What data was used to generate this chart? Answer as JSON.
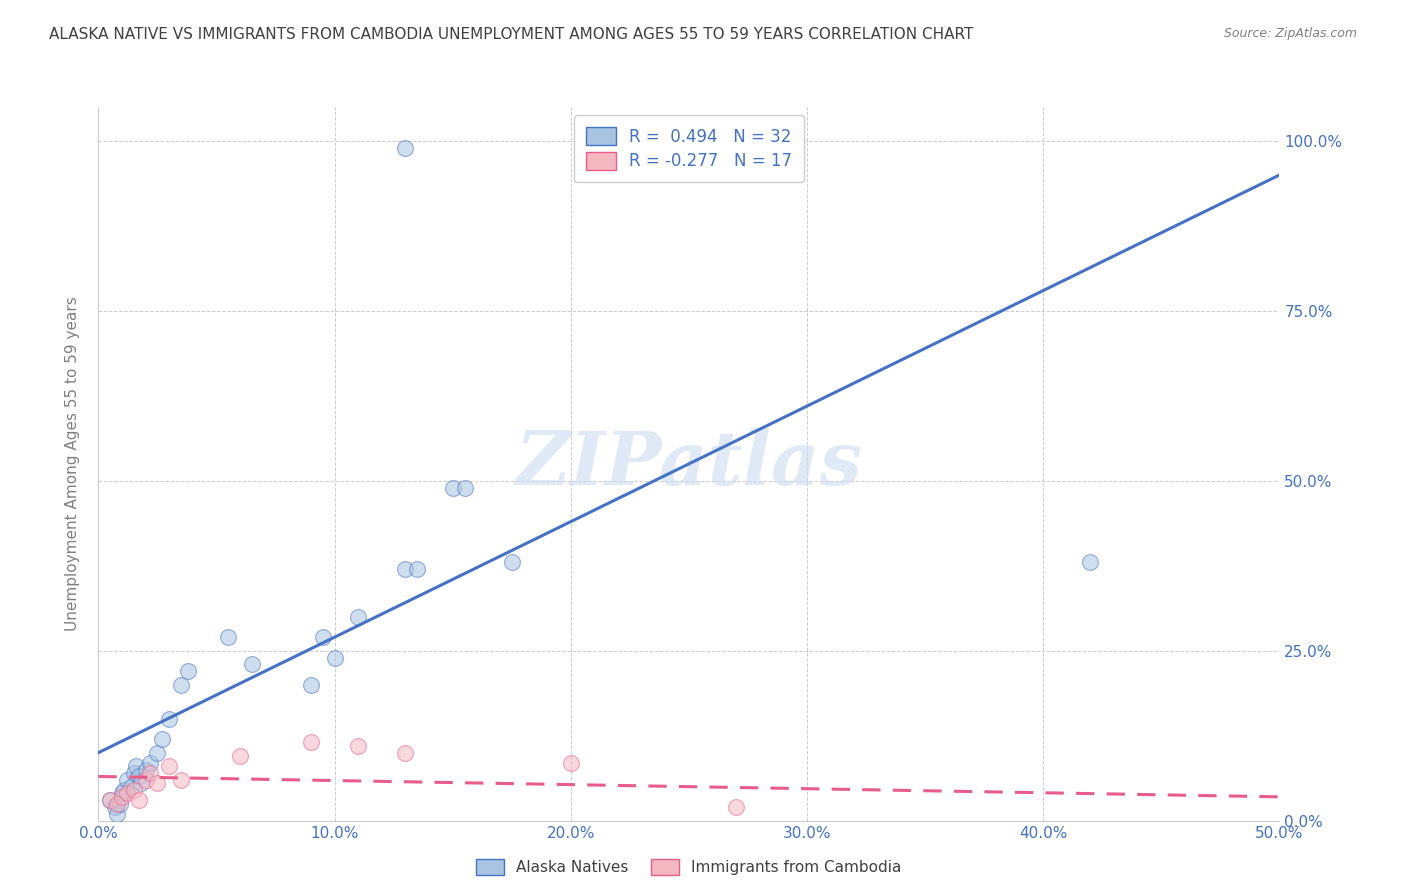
{
  "title": "ALASKA NATIVE VS IMMIGRANTS FROM CAMBODIA UNEMPLOYMENT AMONG AGES 55 TO 59 YEARS CORRELATION CHART",
  "source": "Source: ZipAtlas.com",
  "ylabel": "Unemployment Among Ages 55 to 59 years",
  "xlim": [
    0.0,
    0.5
  ],
  "ylim": [
    0.0,
    1.05
  ],
  "x_ticks": [
    0.0,
    0.1,
    0.2,
    0.3,
    0.4,
    0.5
  ],
  "x_tick_labels": [
    "0.0%",
    "10.0%",
    "20.0%",
    "30.0%",
    "40.0%",
    "50.0%"
  ],
  "y_ticks": [
    0.0,
    0.25,
    0.5,
    0.75,
    1.0
  ],
  "y_tick_labels": [
    "0.0%",
    "25.0%",
    "50.0%",
    "75.0%",
    "100.0%"
  ],
  "alaska_x": [
    0.005,
    0.007,
    0.008,
    0.009,
    0.01,
    0.011,
    0.012,
    0.014,
    0.015,
    0.016,
    0.017,
    0.018,
    0.02,
    0.022,
    0.025,
    0.027,
    0.03,
    0.035,
    0.038,
    0.055,
    0.065,
    0.09,
    0.095,
    0.1,
    0.11,
    0.13,
    0.135,
    0.15,
    0.155,
    0.175,
    0.42,
    0.13
  ],
  "alaska_y": [
    0.03,
    0.02,
    0.01,
    0.025,
    0.04,
    0.045,
    0.06,
    0.05,
    0.07,
    0.08,
    0.065,
    0.055,
    0.075,
    0.085,
    0.1,
    0.12,
    0.15,
    0.2,
    0.22,
    0.27,
    0.23,
    0.2,
    0.27,
    0.24,
    0.3,
    0.37,
    0.37,
    0.49,
    0.49,
    0.38,
    0.38,
    0.99
  ],
  "cambodia_x": [
    0.005,
    0.008,
    0.01,
    0.012,
    0.015,
    0.017,
    0.02,
    0.022,
    0.025,
    0.03,
    0.035,
    0.06,
    0.09,
    0.11,
    0.13,
    0.2,
    0.27
  ],
  "cambodia_y": [
    0.03,
    0.025,
    0.035,
    0.04,
    0.045,
    0.03,
    0.06,
    0.07,
    0.055,
    0.08,
    0.06,
    0.095,
    0.115,
    0.11,
    0.1,
    0.085,
    0.02
  ],
  "alaska_color": "#a8c4e0",
  "cambodia_color": "#f4b8c1",
  "alaska_line_color": "#4472c4",
  "cambodia_line_color": "#e85c8a",
  "legend_r1_prefix": "R = ",
  "legend_r1_value": " 0.494",
  "legend_r1_n": "  N = 32",
  "legend_r2_prefix": "R = ",
  "legend_r2_value": "-0.277",
  "legend_r2_n": "  N = 17",
  "watermark": "ZIPatlas",
  "background_color": "#ffffff",
  "grid_color": "#cccccc",
  "title_color": "#404040",
  "axis_tick_color": "#4472c4",
  "ylabel_color": "#808080",
  "marker_size": 130,
  "marker_alpha": 0.55,
  "line_width": 2.2,
  "alaska_line_intercept": 0.1,
  "alaska_line_slope": 1.7,
  "cambodia_line_intercept": 0.065,
  "cambodia_line_slope": -0.06
}
